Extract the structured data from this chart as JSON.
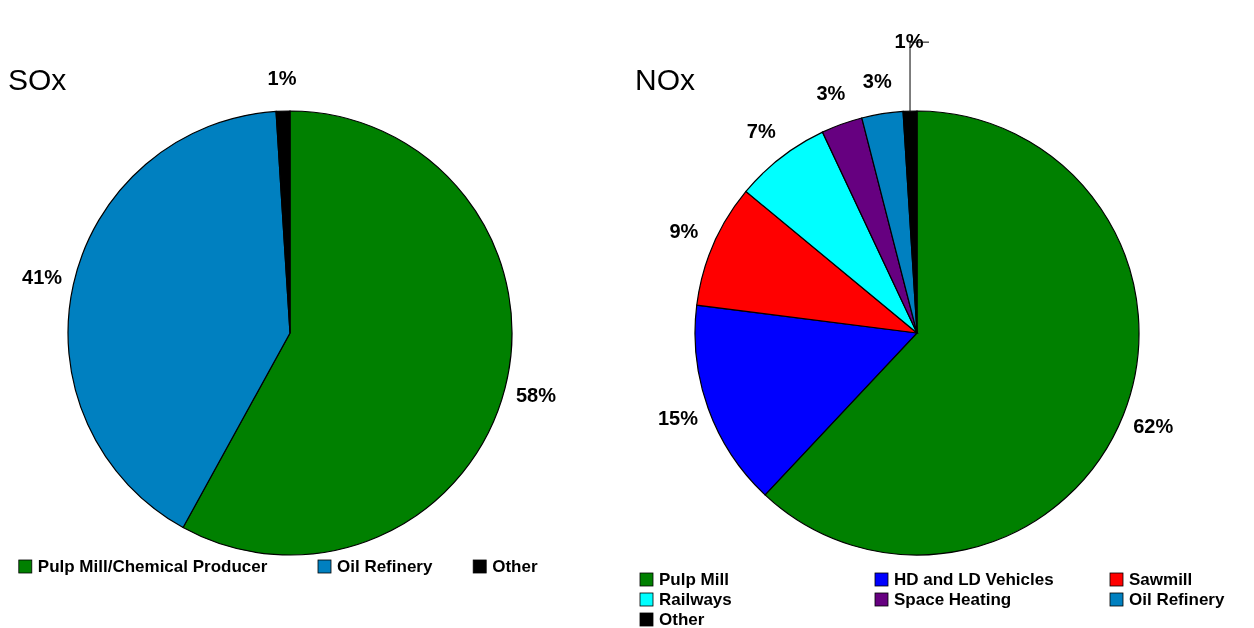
{
  "chart_data": [
    {
      "type": "pie",
      "title": "SOx",
      "categories": [
        "Pulp Mill/Chemical Producer",
        "Oil Refinery",
        "Other"
      ],
      "values": [
        58,
        41,
        1
      ],
      "value_labels": [
        "58%",
        "41%",
        "1%"
      ],
      "colors": [
        "#008000",
        "#0080c0",
        "#000000"
      ],
      "legend": "bottom"
    },
    {
      "type": "pie",
      "title": "NOx",
      "categories": [
        "Pulp Mill",
        "HD and LD Vehicles",
        "Sawmill",
        "Railways",
        "Space Heating",
        "Oil Refinery",
        "Other"
      ],
      "values": [
        62,
        15,
        9,
        7,
        3,
        3,
        1
      ],
      "value_labels": [
        "62%",
        "15%",
        "9%",
        "7%",
        "3%",
        "3%",
        "1%"
      ],
      "colors": [
        "#008000",
        "#0000ff",
        "#ff0000",
        "#00ffff",
        "#660080",
        "#0080c0",
        "#000000"
      ],
      "legend": "bottom"
    }
  ]
}
